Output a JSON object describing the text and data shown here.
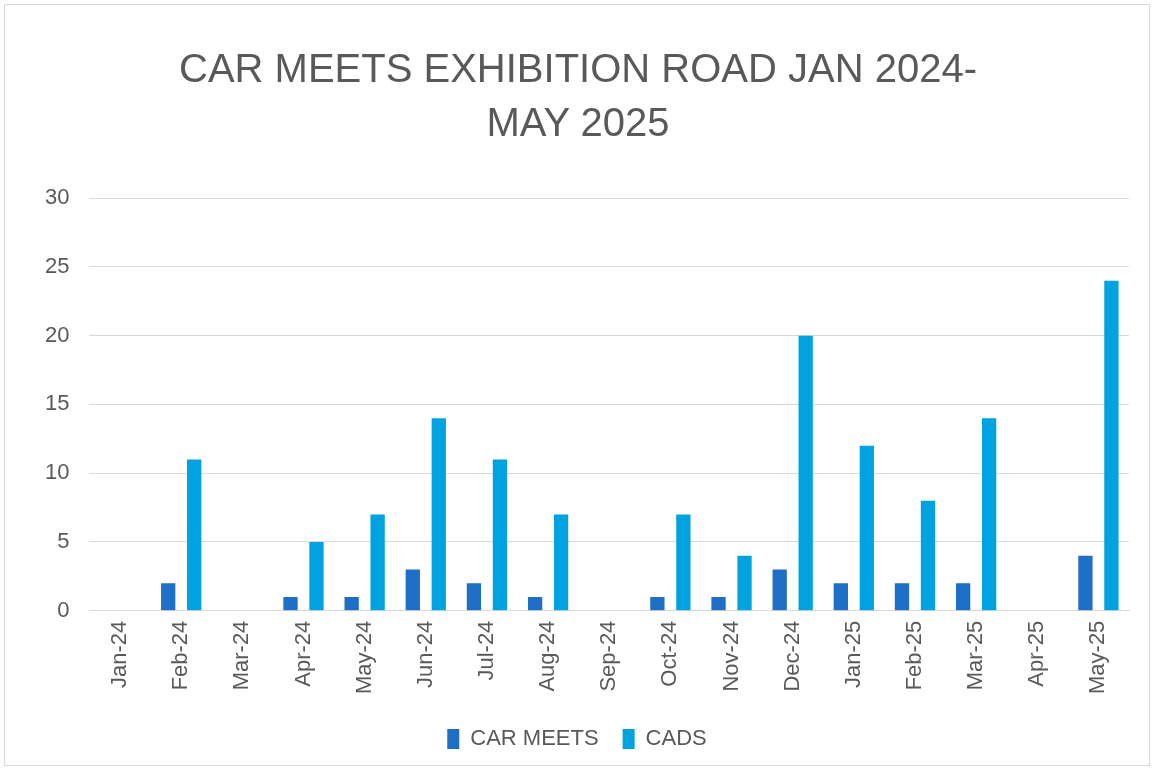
{
  "chart_data": {
    "type": "bar",
    "title": "CAR MEETS EXHIBITION ROAD JAN 2024-MAY 2025",
    "categories": [
      "Jan-24",
      "Feb-24",
      "Mar-24",
      "Apr-24",
      "May-24",
      "Jun-24",
      "Jul-24",
      "Aug-24",
      "Sep-24",
      "Oct-24",
      "Nov-24",
      "Dec-24",
      "Jan-25",
      "Feb-25",
      "Mar-25",
      "Apr-25",
      "May-25"
    ],
    "series": [
      {
        "name": "CAR MEETS",
        "color": "#1f6fc6",
        "values": [
          0,
          2,
          0,
          1,
          1,
          3,
          2,
          1,
          0,
          1,
          1,
          3,
          2,
          2,
          2,
          0,
          4
        ]
      },
      {
        "name": "CADS",
        "color": "#00a3e0",
        "values": [
          0,
          11,
          0,
          5,
          7,
          14,
          11,
          7,
          0,
          7,
          4,
          20,
          12,
          8,
          14,
          0,
          24
        ]
      }
    ],
    "ylim": [
      0,
      30
    ],
    "yticks": [
      0,
      5,
      10,
      15,
      20,
      25,
      30
    ],
    "grid": "y",
    "legend": "bottom"
  }
}
